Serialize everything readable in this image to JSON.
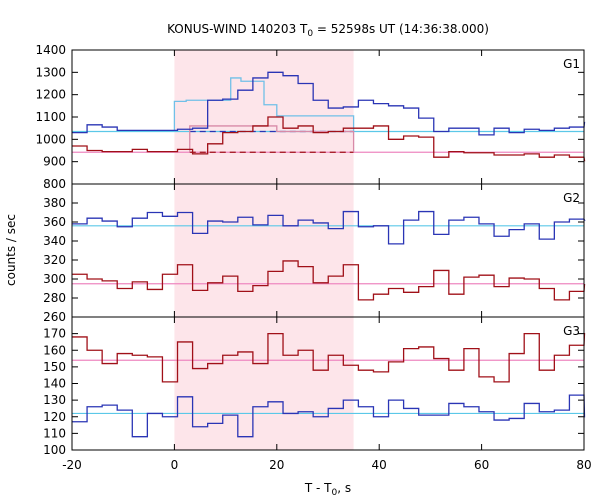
{
  "chart_data": {
    "type": "line",
    "title": "KONUS-WIND 140203 T₀ = 52598s UT (14:36:38.000)",
    "title_parts": {
      "prefix": "KONUS-WIND 140203 T",
      "sub": "0",
      "suffix": " = 52598s UT (14:36:38.000)"
    },
    "xlabel": "T - T₀, s",
    "xlabel_parts": {
      "prefix": "T - T",
      "sub": "0",
      "suffix": ", s"
    },
    "ylabel": "counts / sec",
    "xlim": [
      -20,
      80
    ],
    "x_ticks": [
      -20,
      0,
      20,
      40,
      60,
      80
    ],
    "highlight_interval": [
      0,
      35
    ],
    "colors": {
      "blue_series": "#2a35b5",
      "red_series": "#a01018",
      "blue_background": "#5bc8e8",
      "red_background": "#ee88c0",
      "blue_model": "#70c0e8",
      "red_model": "#d88aa8",
      "highlight": "#fde5ea"
    },
    "panels": [
      {
        "label": "G1",
        "ylim": [
          800,
          1400
        ],
        "y_ticks": [
          800,
          900,
          1000,
          1100,
          1200,
          1300,
          1400
        ],
        "backgrounds": {
          "blue": 1035,
          "red": 942
        },
        "dashed_levels": {
          "blue": 1035,
          "red": 942,
          "range": [
            3,
            35
          ]
        },
        "model_steps": {
          "blue": {
            "x": [
              0,
              2.3,
              11,
              13,
              17.5,
              20,
              35
            ],
            "y": [
              1170,
              1175,
              1275,
              1260,
              1155,
              1105,
              1035
            ]
          },
          "red": {
            "x": [
              3,
              11,
              20,
              35
            ],
            "y": [
              1060,
              1060,
              1035,
              980
            ]
          }
        },
        "series": [
          {
            "name": "G1 blue",
            "step": 2.944,
            "start": -20,
            "values": [
              1030,
              1065,
              1055,
              1040,
              1040,
              1040,
              1040,
              1045,
              1050,
              1175,
              1180,
              1220,
              1275,
              1300,
              1285,
              1250,
              1175,
              1140,
              1145,
              1175,
              1160,
              1150,
              1140,
              1095,
              1035,
              1050,
              1050,
              1020,
              1050,
              1030,
              1045,
              1040,
              1050,
              1055,
              1075
            ]
          },
          {
            "name": "G1 red",
            "step": 2.944,
            "start": -20,
            "values": [
              970,
              950,
              945,
              945,
              955,
              945,
              945,
              955,
              935,
              980,
              1030,
              1035,
              1060,
              1100,
              1050,
              1060,
              1030,
              1035,
              1050,
              1050,
              1060,
              1000,
              1015,
              1010,
              920,
              945,
              940,
              940,
              930,
              930,
              935,
              920,
              930,
              920,
              905
            ]
          }
        ]
      },
      {
        "label": "G2",
        "ylim": [
          260,
          400
        ],
        "y_ticks": [
          260,
          280,
          300,
          320,
          340,
          360,
          380
        ],
        "backgrounds": {
          "blue": 356,
          "red": 295
        },
        "series": [
          {
            "name": "G2 blue",
            "step": 2.944,
            "start": -20,
            "values": [
              358,
              364,
              361,
              355,
              364,
              370,
              366,
              370,
              348,
              361,
              360,
              365,
              357,
              367,
              356,
              362,
              359,
              353,
              371,
              355,
              356,
              337,
              362,
              371,
              347,
              362,
              365,
              358,
              345,
              352,
              358,
              342,
              360,
              363,
              362
            ]
          },
          {
            "name": "G2 red",
            "step": 2.944,
            "start": -20,
            "values": [
              305,
              300,
              298,
              290,
              297,
              289,
              305,
              315,
              288,
              296,
              303,
              287,
              293,
              308,
              319,
              313,
              296,
              303,
              315,
              278,
              284,
              290,
              286,
              292,
              309,
              284,
              302,
              304,
              292,
              301,
              300,
              290,
              278,
              287,
              294
            ]
          }
        ]
      },
      {
        "label": "G3",
        "ylim": [
          100,
          180
        ],
        "y_ticks": [
          100,
          110,
          120,
          130,
          140,
          150,
          160,
          170
        ],
        "backgrounds": {
          "blue": 122,
          "red": 154
        },
        "series": [
          {
            "name": "G3 blue",
            "step": 2.944,
            "start": -20,
            "values": [
              117,
              126,
              127,
              124,
              108,
              122,
              120,
              132,
              114,
              116,
              121,
              108,
              126,
              129,
              122,
              123,
              120,
              125,
              130,
              126,
              120,
              130,
              125,
              121,
              121,
              128,
              126,
              123,
              118,
              119,
              128,
              123,
              124,
              133,
              120
            ]
          },
          {
            "name": "G3 red",
            "step": 2.944,
            "start": -20,
            "values": [
              168,
              160,
              152,
              158,
              157,
              156,
              141,
              165,
              149,
              152,
              157,
              159,
              152,
              170,
              157,
              160,
              148,
              157,
              151,
              148,
              147,
              153,
              161,
              162,
              155,
              148,
              161,
              144,
              141,
              158,
              170,
              148,
              157,
              163,
              170
            ]
          }
        ]
      }
    ]
  }
}
